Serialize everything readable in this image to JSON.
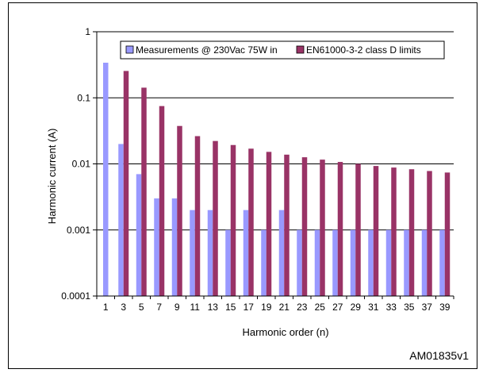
{
  "chart_data": {
    "type": "bar",
    "title": "",
    "xlabel": "Harmonic order (n)",
    "ylabel": "Harmonic current (A)",
    "yscale": "log",
    "ylim": [
      0.0001,
      1
    ],
    "yticks": [
      1,
      0.1,
      0.01,
      0.001,
      0.0001
    ],
    "ytick_labels": [
      "1",
      "0.1",
      "0.01",
      "0.001",
      "0.0001"
    ],
    "grid": "horizontal",
    "legend": "top",
    "categories": [
      "1",
      "3",
      "5",
      "7",
      "9",
      "11",
      "13",
      "15",
      "17",
      "19",
      "21",
      "23",
      "25",
      "27",
      "29",
      "31",
      "33",
      "35",
      "37",
      "39"
    ],
    "series": [
      {
        "name": "Measurements @ 230Vac 75W in",
        "color": "#9999ff",
        "values": [
          0.34,
          0.02,
          0.007,
          0.003,
          0.003,
          0.002,
          0.002,
          0.001,
          0.002,
          0.001,
          0.002,
          0.001,
          0.001,
          0.001,
          0.001,
          0.001,
          0.001,
          0.001,
          0.001,
          0.001
        ]
      },
      {
        "name": "EN61000-3-2 class D limits",
        "color": "#993366",
        "values": [
          null,
          0.255,
          0.1425,
          0.075,
          0.0375,
          0.0263,
          0.0222,
          0.0193,
          0.017,
          0.0152,
          0.0138,
          0.0126,
          0.0116,
          0.0107,
          0.01,
          0.0093,
          0.0088,
          0.0083,
          0.0078,
          0.0074
        ]
      }
    ]
  },
  "reference_code": "AM01835v1"
}
